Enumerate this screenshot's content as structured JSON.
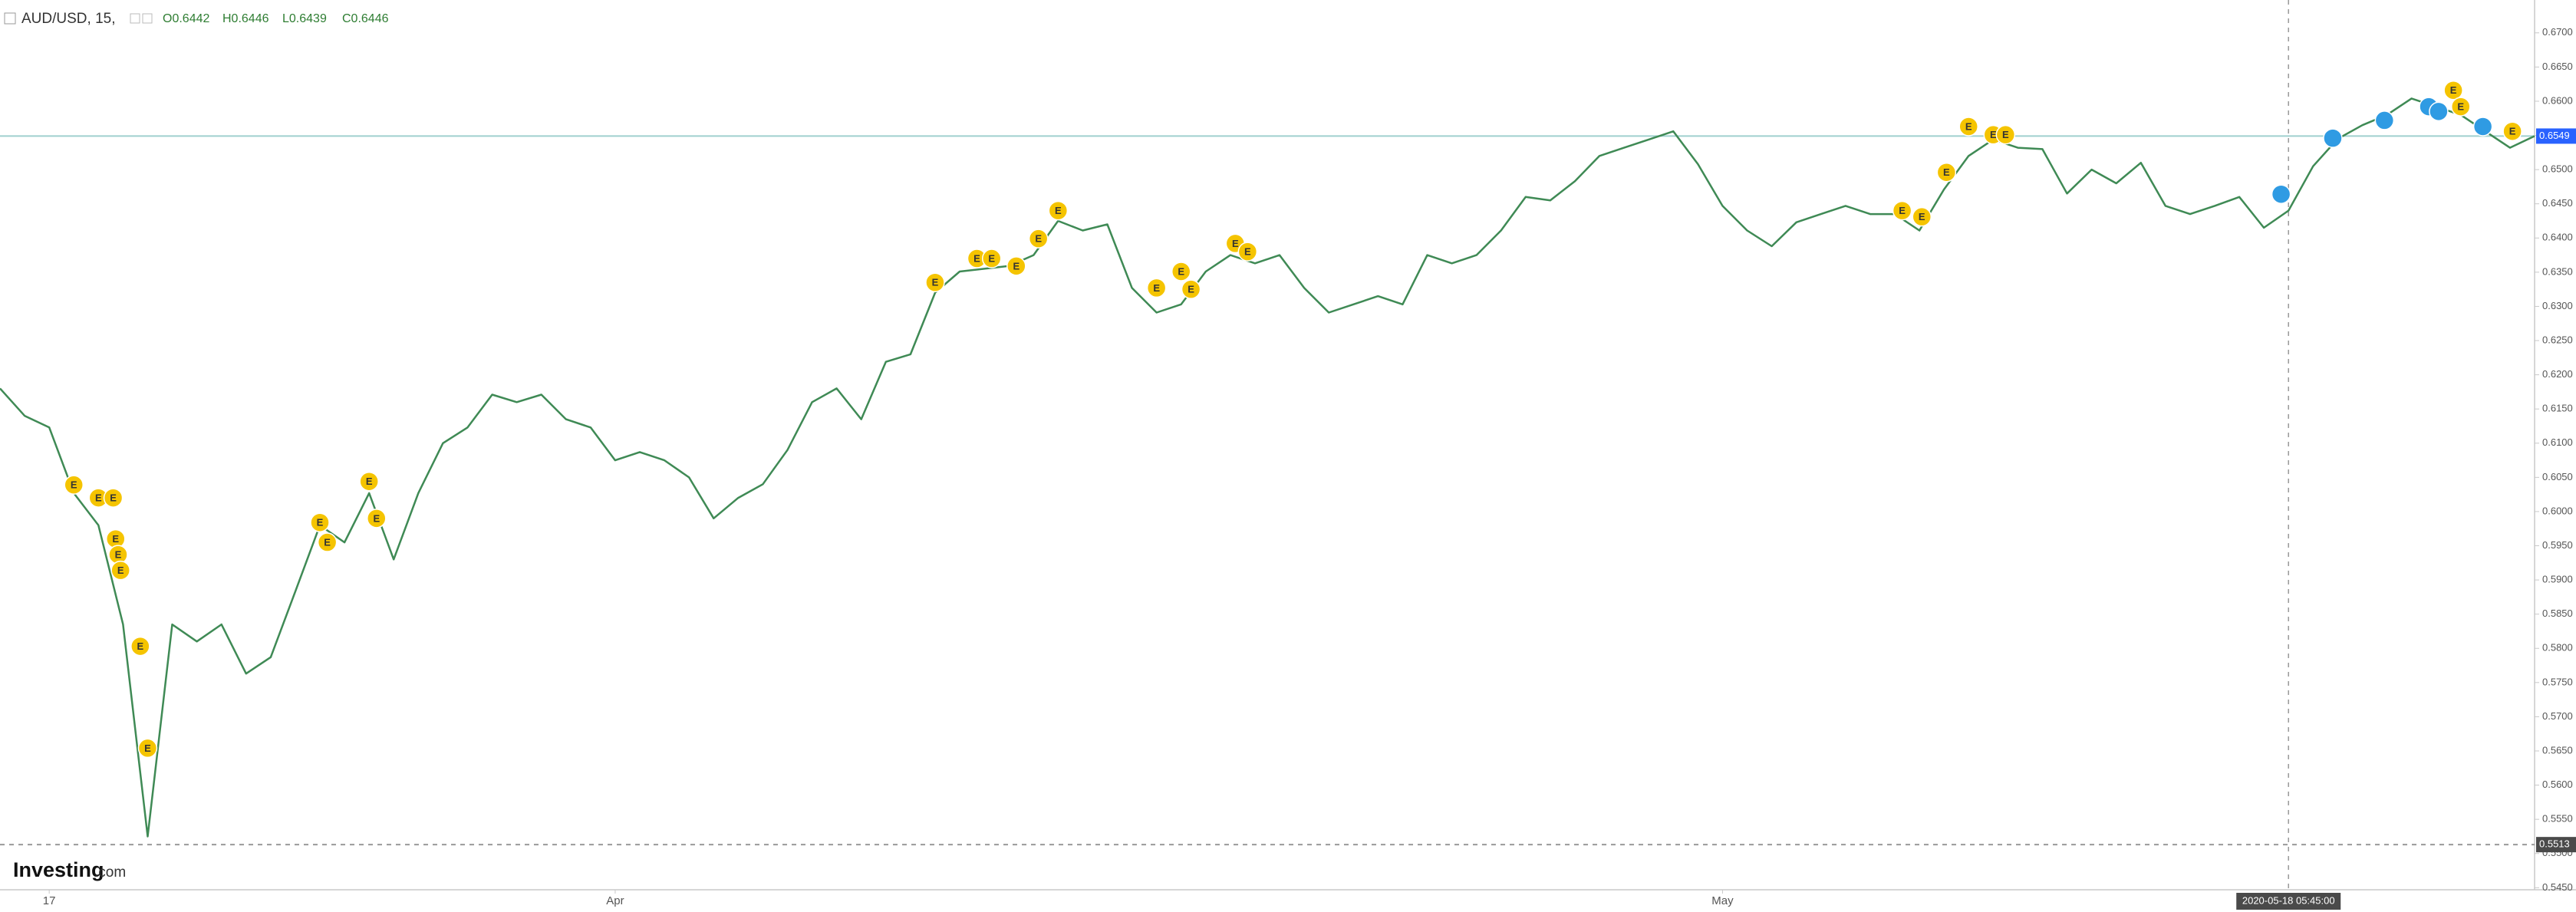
{
  "chart_data": {
    "type": "line",
    "symbol": "AUD/USD, 15,",
    "ohlc": [
      "O0.6442",
      "H0.6446",
      "L0.6439",
      "C0.6446"
    ],
    "logo": "Investing",
    "logo_suffix": ".com",
    "color": "#3f8a55",
    "values": [
      0.618,
      0.614,
      0.6123,
      0.6027,
      0.598,
      0.5835,
      0.5525,
      0.5835,
      0.581,
      0.5835,
      0.5763,
      0.5787,
      0.5883,
      0.598,
      0.5955,
      0.6027,
      0.593,
      0.6027,
      0.61,
      0.6123,
      0.6171,
      0.616,
      0.6171,
      0.6135,
      0.6123,
      0.6075,
      0.6087,
      0.6075,
      0.605,
      0.599,
      0.602,
      0.604,
      0.609,
      0.616,
      0.618,
      0.6135,
      0.6219,
      0.623,
      0.632,
      0.6351,
      0.6355,
      0.6359,
      0.6375,
      0.6425,
      0.6411,
      0.642,
      0.6327,
      0.6291,
      0.6303,
      0.6351,
      0.6375,
      0.6363,
      0.6375,
      0.6327,
      0.6291,
      0.6303,
      0.6315,
      0.6303,
      0.6375,
      0.6363,
      0.6375,
      0.6411,
      0.646,
      0.6455,
      0.6483,
      0.652,
      0.6532,
      0.6544,
      0.6556,
      0.6508,
      0.6447,
      0.6411,
      0.6388,
      0.6423,
      0.6435,
      0.6447,
      0.6435,
      0.6435,
      0.6411,
      0.6471,
      0.652,
      0.6544,
      0.6532,
      0.653,
      0.6465,
      0.65,
      0.648,
      0.651,
      0.6447,
      0.6435,
      0.6447,
      0.646,
      0.6415,
      0.644,
      0.6505,
      0.6545,
      0.6565,
      0.658,
      0.6604,
      0.6592,
      0.658,
      0.6556,
      0.6532,
      0.6549
    ],
    "xlim": [
      0,
      103
    ],
    "xticks": [
      {
        "value": 2,
        "label": "17"
      },
      {
        "value": 25,
        "label": "Apr"
      },
      {
        "value": 70,
        "label": "May"
      }
    ],
    "ylim": [
      0.5447,
      0.6748
    ],
    "yticks": [
      {
        "value": 0.545,
        "label": "0.5450"
      },
      {
        "value": 0.55,
        "label": "0.5500"
      },
      {
        "value": 0.555,
        "label": "0.5550"
      },
      {
        "value": 0.56,
        "label": "0.5600"
      },
      {
        "value": 0.565,
        "label": "0.5650"
      },
      {
        "value": 0.57,
        "label": "0.5700"
      },
      {
        "value": 0.575,
        "label": "0.5750"
      },
      {
        "value": 0.58,
        "label": "0.5800"
      },
      {
        "value": 0.585,
        "label": "0.5850"
      },
      {
        "value": 0.59,
        "label": "0.5900"
      },
      {
        "value": 0.595,
        "label": "0.5950"
      },
      {
        "value": 0.6,
        "label": "0.6000"
      },
      {
        "value": 0.605,
        "label": "0.6050"
      },
      {
        "value": 0.61,
        "label": "0.6100"
      },
      {
        "value": 0.615,
        "label": "0.6150"
      },
      {
        "value": 0.62,
        "label": "0.6200"
      },
      {
        "value": 0.625,
        "label": "0.6250"
      },
      {
        "value": 0.63,
        "label": "0.6300"
      },
      {
        "value": 0.635,
        "label": "0.6350"
      },
      {
        "value": 0.64,
        "label": "0.6400"
      },
      {
        "value": 0.645,
        "label": "0.6450"
      },
      {
        "value": 0.65,
        "label": "0.6500"
      },
      {
        "value": 0.655,
        "label": "0.6550"
      },
      {
        "value": 0.66,
        "label": "0.6600"
      },
      {
        "value": 0.665,
        "label": "0.6650"
      },
      {
        "value": 0.67,
        "label": "0.6700"
      }
    ],
    "price_lines": [
      {
        "value": 0.6549,
        "label": "0.6549",
        "color": "#2962ff",
        "line_color": "#9fd0cf",
        "dashed": false
      },
      {
        "value": 0.5513,
        "label": "0.5513",
        "color": "#4a4a4a",
        "line_color": "#999999",
        "dashed": true
      }
    ],
    "crosshair": {
      "x": 93,
      "label": "2020-05-18 05:45:00"
    },
    "events": [
      {
        "x": 3,
        "y": 0.6039,
        "label": "E",
        "color": "#f5c400"
      },
      {
        "x": 4,
        "y": 0.602,
        "label": "E",
        "color": "#f5c400"
      },
      {
        "x": 4.6,
        "y": 0.602,
        "label": "E",
        "color": "#f5c400"
      },
      {
        "x": 4.7,
        "y": 0.596,
        "label": "E",
        "color": "#f5c400"
      },
      {
        "x": 4.8,
        "y": 0.5937,
        "label": "E",
        "color": "#f5c400"
      },
      {
        "x": 4.9,
        "y": 0.5914,
        "label": "E",
        "color": "#f5c400"
      },
      {
        "x": 5.7,
        "y": 0.5803,
        "label": "E",
        "color": "#f5c400"
      },
      {
        "x": 6,
        "y": 0.5654,
        "label": "E",
        "color": "#f5c400"
      },
      {
        "x": 13,
        "y": 0.5984,
        "label": "E",
        "color": "#f5c400"
      },
      {
        "x": 13.3,
        "y": 0.5955,
        "label": "E",
        "color": "#f5c400"
      },
      {
        "x": 15,
        "y": 0.6044,
        "label": "E",
        "color": "#f5c400"
      },
      {
        "x": 15.3,
        "y": 0.599,
        "label": "E",
        "color": "#f5c400"
      },
      {
        "x": 38,
        "y": 0.6335,
        "label": "E",
        "color": "#f5c400"
      },
      {
        "x": 39.7,
        "y": 0.637,
        "label": "E",
        "color": "#f5c400"
      },
      {
        "x": 40.3,
        "y": 0.637,
        "label": "E",
        "color": "#f5c400"
      },
      {
        "x": 41.3,
        "y": 0.6359,
        "label": "E",
        "color": "#f5c400"
      },
      {
        "x": 42.2,
        "y": 0.6399,
        "label": "E",
        "color": "#f5c400"
      },
      {
        "x": 43,
        "y": 0.644,
        "label": "E",
        "color": "#f5c400"
      },
      {
        "x": 47,
        "y": 0.6327,
        "label": "E",
        "color": "#f5c400"
      },
      {
        "x": 48,
        "y": 0.6351,
        "label": "E",
        "color": "#f5c400"
      },
      {
        "x": 48.4,
        "y": 0.6325,
        "label": "E",
        "color": "#f5c400"
      },
      {
        "x": 50.2,
        "y": 0.6392,
        "label": "E",
        "color": "#f5c400"
      },
      {
        "x": 50.7,
        "y": 0.638,
        "label": "E",
        "color": "#f5c400"
      },
      {
        "x": 77.3,
        "y": 0.644,
        "label": "E",
        "color": "#f5c400"
      },
      {
        "x": 78.1,
        "y": 0.6431,
        "label": "E",
        "color": "#f5c400"
      },
      {
        "x": 79.1,
        "y": 0.6496,
        "label": "E",
        "color": "#f5c400"
      },
      {
        "x": 80,
        "y": 0.6563,
        "label": "E",
        "color": "#f5c400"
      },
      {
        "x": 81,
        "y": 0.6551,
        "label": "E",
        "color": "#f5c400"
      },
      {
        "x": 81.5,
        "y": 0.6551,
        "label": "E",
        "color": "#f5c400"
      },
      {
        "x": 99.7,
        "y": 0.6616,
        "label": "E",
        "color": "#f5c400"
      },
      {
        "x": 100,
        "y": 0.6592,
        "label": "E",
        "color": "#f5c400"
      },
      {
        "x": 102.1,
        "y": 0.6556,
        "label": "E",
        "color": "#f5c400"
      },
      {
        "x": 92.7,
        "y": 0.6464,
        "color": "#2f9be3"
      },
      {
        "x": 94.8,
        "y": 0.6546,
        "color": "#2f9be3"
      },
      {
        "x": 96.9,
        "y": 0.6572,
        "color": "#2f9be3"
      },
      {
        "x": 98.7,
        "y": 0.6592,
        "color": "#2f9be3"
      },
      {
        "x": 99.1,
        "y": 0.6585,
        "color": "#2f9be3"
      },
      {
        "x": 100.9,
        "y": 0.6563,
        "color": "#2f9be3"
      }
    ]
  }
}
